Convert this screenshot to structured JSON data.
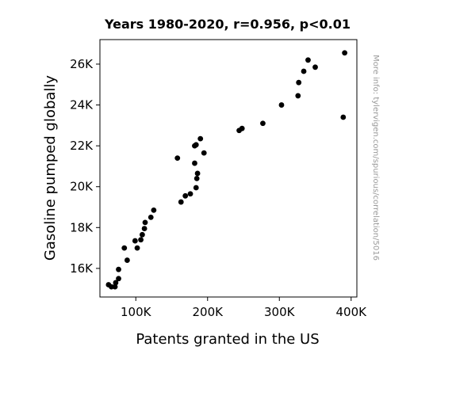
{
  "chart_data": {
    "type": "scatter",
    "title": "Years 1980-2020, r=0.956, p<0.01",
    "xlabel": "Patents granted in the US",
    "ylabel": "Gasoline pumped globally",
    "xlim": [
      50000,
      408000
    ],
    "ylim": [
      14600,
      27200
    ],
    "xticks": [
      100000,
      200000,
      300000,
      400000
    ],
    "xtick_labels": [
      "100K",
      "200K",
      "300K",
      "400K"
    ],
    "yticks": [
      16000,
      18000,
      20000,
      22000,
      24000,
      26000
    ],
    "ytick_labels": [
      "16K",
      "18K",
      "20K",
      "22K",
      "24K",
      "26K"
    ],
    "grid": false,
    "marker_color": "#000000",
    "points": [
      {
        "x": 62000,
        "y": 15200
      },
      {
        "x": 66000,
        "y": 15100
      },
      {
        "x": 71000,
        "y": 15100
      },
      {
        "x": 72000,
        "y": 15300
      },
      {
        "x": 76000,
        "y": 15500
      },
      {
        "x": 76000,
        "y": 15950
      },
      {
        "x": 84000,
        "y": 17000
      },
      {
        "x": 88000,
        "y": 16400
      },
      {
        "x": 99000,
        "y": 17350
      },
      {
        "x": 102000,
        "y": 17000
      },
      {
        "x": 107000,
        "y": 17400
      },
      {
        "x": 109000,
        "y": 17650
      },
      {
        "x": 112000,
        "y": 17950
      },
      {
        "x": 113000,
        "y": 18250
      },
      {
        "x": 121000,
        "y": 18500
      },
      {
        "x": 125000,
        "y": 18850
      },
      {
        "x": 158000,
        "y": 21400
      },
      {
        "x": 163000,
        "y": 19250
      },
      {
        "x": 169000,
        "y": 19550
      },
      {
        "x": 176000,
        "y": 19650
      },
      {
        "x": 182000,
        "y": 21150
      },
      {
        "x": 182000,
        "y": 22000
      },
      {
        "x": 184000,
        "y": 22050
      },
      {
        "x": 184000,
        "y": 19950
      },
      {
        "x": 185000,
        "y": 20400
      },
      {
        "x": 186000,
        "y": 20650
      },
      {
        "x": 190000,
        "y": 22350
      },
      {
        "x": 195000,
        "y": 21650
      },
      {
        "x": 244000,
        "y": 22750
      },
      {
        "x": 248000,
        "y": 22850
      },
      {
        "x": 277000,
        "y": 23100
      },
      {
        "x": 303000,
        "y": 24000
      },
      {
        "x": 326000,
        "y": 24450
      },
      {
        "x": 327000,
        "y": 25100
      },
      {
        "x": 334000,
        "y": 25650
      },
      {
        "x": 340000,
        "y": 26200
      },
      {
        "x": 350000,
        "y": 25850
      },
      {
        "x": 389000,
        "y": 23400
      },
      {
        "x": 391000,
        "y": 26550
      }
    ]
  },
  "watermark": "More info: tylervigen.com/spurious/correlation/5016"
}
